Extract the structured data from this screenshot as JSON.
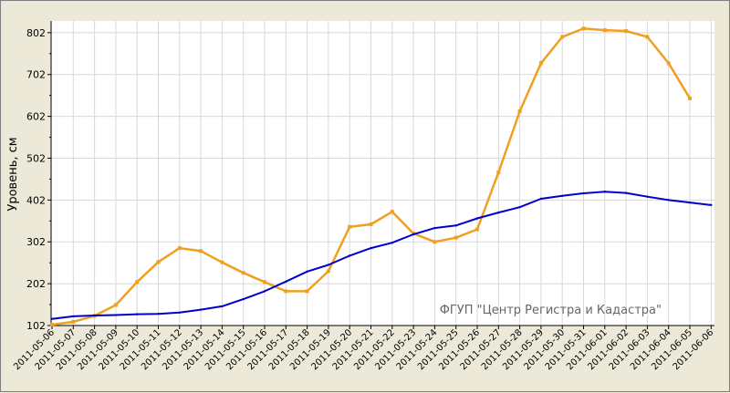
{
  "chart_data": {
    "type": "line",
    "title": "",
    "xlabel": "",
    "ylabel": "Уровень, см",
    "annotation": "ФГУП \"Центр Регистра и Кадастра\"",
    "ylim": [
      102,
      830
    ],
    "yticks": [
      102,
      202,
      302,
      402,
      502,
      602,
      702,
      802
    ],
    "grid": true,
    "categories": [
      "2011-05-06",
      "2011-05-07",
      "2011-05-08",
      "2011-05-09",
      "2011-05-10",
      "2011-05-11",
      "2011-05-12",
      "2011-05-13",
      "2011-05-14",
      "2011-05-15",
      "2011-05-16",
      "2011-05-17",
      "2011-05-18",
      "2011-05-19",
      "2011-05-20",
      "2011-05-21",
      "2011-05-22",
      "2011-05-23",
      "2011-05-24",
      "2011-05-25",
      "2011-05-26",
      "2011-05-27",
      "2011-05-28",
      "2011-05-29",
      "2011-05-30",
      "2011-05-31",
      "2011-06-01",
      "2011-06-02",
      "2011-06-03",
      "2011-06-04",
      "2011-06-05",
      "2011-06-06"
    ],
    "series": [
      {
        "color": "#f0a020",
        "values": [
          104,
          111,
          125,
          151,
          206,
          254,
          287,
          280,
          253,
          228,
          206,
          184,
          184,
          232,
          338,
          344,
          374,
          322,
          302,
          312,
          332,
          468,
          614,
          729,
          792,
          812,
          808,
          806,
          792,
          729,
          645,
          null
        ]
      },
      {
        "color": "#0000cc",
        "values": [
          118,
          124,
          126,
          127,
          129,
          130,
          133,
          140,
          148,
          165,
          184,
          207,
          231,
          247,
          269,
          287,
          300,
          320,
          335,
          341,
          358,
          372,
          385,
          405,
          412,
          418,
          422,
          419,
          410,
          402,
          396,
          390
        ]
      }
    ]
  }
}
